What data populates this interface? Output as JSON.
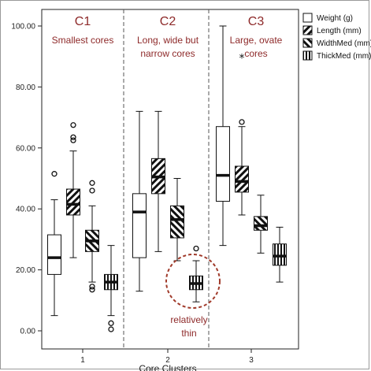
{
  "chart_data": {
    "type": "boxplot",
    "title": "",
    "xlabel": "Core Clusters",
    "ylabel": "",
    "ylim": [
      0,
      100
    ],
    "yticks": [
      "0.00",
      "20.00",
      "40.00",
      "60.00",
      "80.00",
      "100.00"
    ],
    "categories": [
      "1",
      "2",
      "3"
    ],
    "cluster_labels": [
      {
        "name": "C1",
        "desc": [
          "Smallest cores"
        ]
      },
      {
        "name": "C2",
        "desc": [
          "Long, wide but",
          "narrow cores"
        ]
      },
      {
        "name": "C3",
        "desc": [
          "Large, ovate",
          "cores"
        ]
      }
    ],
    "annotation": [
      "relatively",
      "thin"
    ],
    "legend_position": "top-right",
    "series": [
      {
        "name": "Weight (g)",
        "pattern": "open",
        "boxes": [
          {
            "min": 5,
            "q1": 18.5,
            "median": 24,
            "q3": 31.5,
            "max": 43,
            "outliers": [
              51.5
            ],
            "extremes": []
          },
          {
            "min": 13,
            "q1": 24,
            "median": 39,
            "q3": 45,
            "max": 72,
            "outliers": [],
            "extremes": []
          },
          {
            "min": 28,
            "q1": 42.5,
            "median": 51,
            "q3": 67,
            "max": 100,
            "outliers": [],
            "extremes": []
          }
        ]
      },
      {
        "name": "Length (mm)",
        "pattern": "diagonal",
        "boxes": [
          {
            "min": 24,
            "q1": 38,
            "median": 41.5,
            "q3": 46.5,
            "max": 59,
            "outliers": [
              62.5,
              63.5,
              67.5
            ],
            "extremes": []
          },
          {
            "min": 26,
            "q1": 45,
            "median": 50.5,
            "q3": 56.5,
            "max": 72,
            "outliers": [],
            "extremes": []
          },
          {
            "min": 38,
            "q1": 45.5,
            "median": 49,
            "q3": 54,
            "max": 67,
            "outliers": [
              68.5
            ],
            "extremes": [
              89.5
            ]
          }
        ]
      },
      {
        "name": "WidthMed (mm)",
        "pattern": "reverse-diagonal",
        "boxes": [
          {
            "min": 16,
            "q1": 26,
            "median": 29.5,
            "q3": 33,
            "max": 41,
            "outliers": [
              13.5,
              14.5,
              46,
              48.5
            ],
            "extremes": []
          },
          {
            "min": 23,
            "q1": 30.5,
            "median": 36.5,
            "q3": 41,
            "max": 50,
            "outliers": [],
            "extremes": []
          },
          {
            "min": 25.5,
            "q1": 33,
            "median": 34.5,
            "q3": 37.5,
            "max": 44.5,
            "outliers": [],
            "extremes": []
          }
        ]
      },
      {
        "name": "ThickMed (mm)",
        "pattern": "vertical",
        "boxes": [
          {
            "min": 5,
            "q1": 13.5,
            "median": 16,
            "q3": 18.5,
            "max": 28,
            "outliers": [
              0.5,
              2.5
            ],
            "extremes": []
          },
          {
            "min": 9.5,
            "q1": 13.5,
            "median": 15.5,
            "q3": 18,
            "max": 23,
            "outliers": [
              27
            ],
            "extremes": []
          },
          {
            "min": 16,
            "q1": 21.5,
            "median": 24.5,
            "q3": 28.5,
            "max": 34,
            "outliers": [],
            "extremes": []
          }
        ]
      }
    ]
  }
}
